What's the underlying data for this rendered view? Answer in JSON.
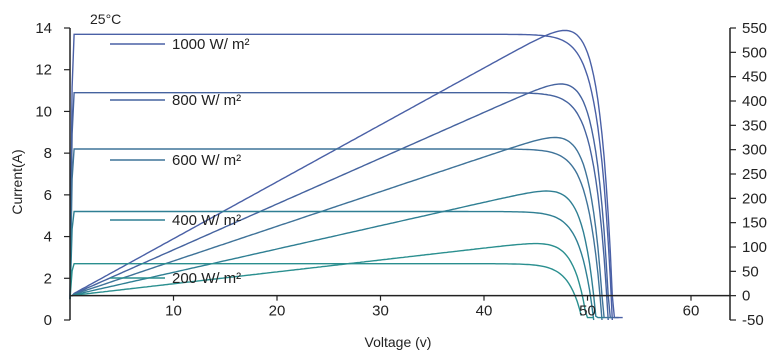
{
  "chart_data": {
    "type": "line",
    "annotation": "25°C",
    "xlabel": "Voltage (v)",
    "ylabel": "Current(A)",
    "xlim": [
      0,
      65
    ],
    "ylim_left": [
      0,
      14
    ],
    "ylim_right": [
      -50,
      550
    ],
    "x_ticks": [
      "10",
      "20",
      "30",
      "40",
      "50",
      "60"
    ],
    "x_tick_values": [
      10,
      20,
      30,
      40,
      50,
      60
    ],
    "y_left_ticks": [
      "0",
      "2",
      "4",
      "6",
      "8",
      "10",
      "12",
      "14"
    ],
    "y_left_tick_values": [
      0,
      2,
      4,
      6,
      8,
      10,
      12,
      14
    ],
    "y_right_ticks": [
      "-50",
      "0",
      "50",
      "100",
      "150",
      "200",
      "250",
      "300",
      "350",
      "400",
      "450",
      "500",
      "550"
    ],
    "y_right_tick_values": [
      -50,
      0,
      50,
      100,
      150,
      200,
      250,
      300,
      350,
      400,
      450,
      500,
      550
    ],
    "series": [
      {
        "name": "1000 W/ m²",
        "isc": 13.7,
        "voc": 52.4,
        "pmax": 545,
        "vmp": 44.0,
        "color": "#4a60a6"
      },
      {
        "name": "800 W/ m²",
        "isc": 10.9,
        "voc": 52.0,
        "pmax": 435,
        "vmp": 44.0,
        "color": "#45639f"
      },
      {
        "name": "600 W/ m²",
        "isc": 8.2,
        "voc": 51.4,
        "pmax": 325,
        "vmp": 43.5,
        "color": "#3f7399"
      },
      {
        "name": "400 W/ m²",
        "isc": 5.2,
        "voc": 50.6,
        "pmax": 215,
        "vmp": 43.5,
        "color": "#2f7f93"
      },
      {
        "name": "200 W/ m²",
        "isc": 2.7,
        "voc": 49.5,
        "pmax": 107,
        "vmp": 43.5,
        "color": "#2a8f8f"
      }
    ],
    "legend_entries": [
      {
        "label": "1000 W/ m²",
        "color": "#4a60a6"
      },
      {
        "label": "800 W/ m²",
        "color": "#45639f"
      },
      {
        "label": "600 W/ m²",
        "color": "#3f7399"
      },
      {
        "label": "400 W/ m²",
        "color": "#2f7f93"
      },
      {
        "label": "200 W/ m²",
        "color": "#2a8f8f"
      }
    ],
    "axis_color": "#222222"
  }
}
